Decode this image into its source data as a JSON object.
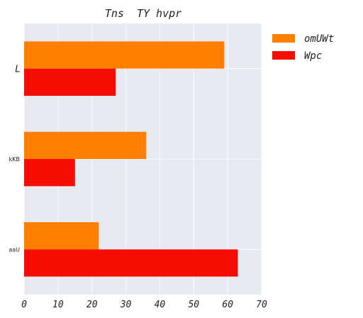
{
  "chart_data": {
    "type": "bar",
    "orientation": "horizontal",
    "title": "Tns  TY hvpr",
    "xlabel": "",
    "ylabel": "",
    "categories": [
      "L",
      "kKB",
      "aaU"
    ],
    "series": [
      {
        "name": "omUWt",
        "values": [
          59,
          36,
          22
        ],
        "color": "#ff7f00"
      },
      {
        "name": "Wpc",
        "values": [
          27,
          15,
          63
        ],
        "color": "#f50d00"
      }
    ],
    "xlim": [
      0,
      70
    ],
    "xticks": [
      "0",
      "10",
      "20",
      "30",
      "40",
      "50",
      "60",
      "70"
    ],
    "grid": true,
    "legend_position": "outside-top-right",
    "background_color": "#e8e9f1",
    "grid_color": "#ffffff"
  }
}
